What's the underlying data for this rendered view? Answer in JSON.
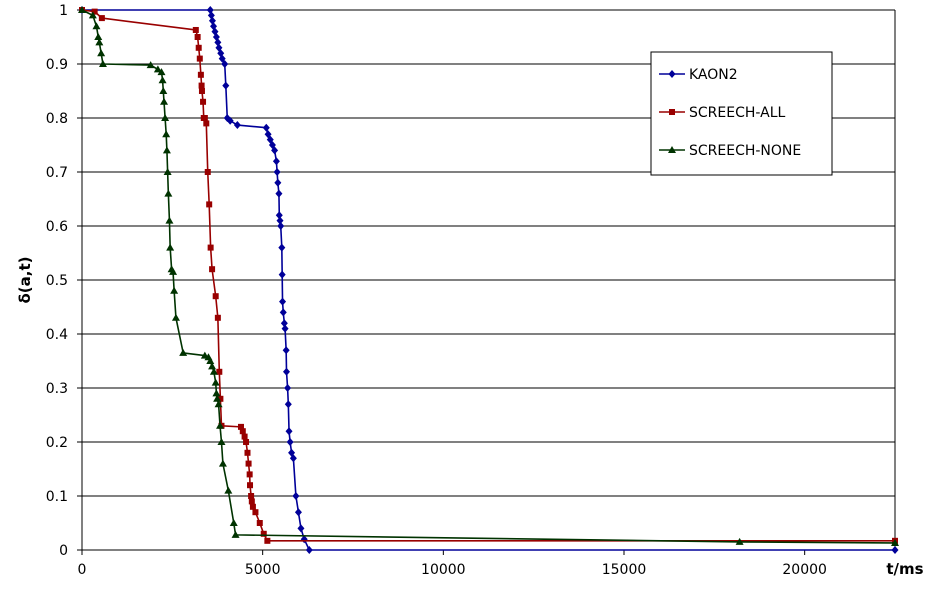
{
  "chart_data": {
    "type": "line",
    "title": "",
    "xlabel": "t/ms",
    "ylabel": "δ(a,t)",
    "xlim": [
      0,
      22500
    ],
    "ylim": [
      0,
      1
    ],
    "xticks": [
      0,
      5000,
      10000,
      15000,
      20000
    ],
    "yticks": [
      0,
      0.1,
      0.2,
      0.3,
      0.4,
      0.5,
      0.6,
      0.7,
      0.8,
      0.9,
      1
    ],
    "xtick_labels": [
      "0",
      "5000",
      "10000",
      "15000",
      "20000"
    ],
    "ytick_labels": [
      "0",
      "0.1",
      "0.2",
      "0.3",
      "0.4",
      "0.5",
      "0.6",
      "0.7",
      "0.8",
      "0.9",
      "1"
    ],
    "grid": {
      "horizontal": true,
      "vertical": false
    },
    "legend_position": "top-right",
    "series": [
      {
        "name": "KAON2",
        "color": "#000099",
        "marker": "diamond",
        "points": [
          [
            0,
            1
          ],
          [
            3550,
            1
          ],
          [
            3580,
            0.99
          ],
          [
            3610,
            0.98
          ],
          [
            3640,
            0.97
          ],
          [
            3680,
            0.96
          ],
          [
            3720,
            0.95
          ],
          [
            3760,
            0.94
          ],
          [
            3790,
            0.93
          ],
          [
            3840,
            0.92
          ],
          [
            3880,
            0.91
          ],
          [
            3950,
            0.9
          ],
          [
            3980,
            0.86
          ],
          [
            4020,
            0.8
          ],
          [
            4100,
            0.795
          ],
          [
            4300,
            0.787
          ],
          [
            5100,
            0.782
          ],
          [
            5150,
            0.77
          ],
          [
            5210,
            0.76
          ],
          [
            5270,
            0.75
          ],
          [
            5330,
            0.74
          ],
          [
            5380,
            0.72
          ],
          [
            5400,
            0.7
          ],
          [
            5420,
            0.68
          ],
          [
            5450,
            0.66
          ],
          [
            5460,
            0.62
          ],
          [
            5480,
            0.61
          ],
          [
            5500,
            0.6
          ],
          [
            5530,
            0.56
          ],
          [
            5540,
            0.51
          ],
          [
            5550,
            0.46
          ],
          [
            5570,
            0.44
          ],
          [
            5600,
            0.42
          ],
          [
            5620,
            0.41
          ],
          [
            5650,
            0.37
          ],
          [
            5660,
            0.33
          ],
          [
            5690,
            0.3
          ],
          [
            5710,
            0.27
          ],
          [
            5730,
            0.22
          ],
          [
            5760,
            0.2
          ],
          [
            5800,
            0.18
          ],
          [
            5850,
            0.17
          ],
          [
            5920,
            0.1
          ],
          [
            5990,
            0.07
          ],
          [
            6060,
            0.04
          ],
          [
            6150,
            0.02
          ],
          [
            6290,
            0
          ],
          [
            22500,
            0
          ]
        ]
      },
      {
        "name": "SCREECH-ALL",
        "color": "#990000",
        "marker": "square",
        "points": [
          [
            0,
            1
          ],
          [
            350,
            0.997
          ],
          [
            550,
            0.985
          ],
          [
            3150,
            0.963
          ],
          [
            3200,
            0.95
          ],
          [
            3230,
            0.93
          ],
          [
            3260,
            0.91
          ],
          [
            3290,
            0.88
          ],
          [
            3310,
            0.86
          ],
          [
            3320,
            0.85
          ],
          [
            3350,
            0.83
          ],
          [
            3370,
            0.8
          ],
          [
            3400,
            0.8
          ],
          [
            3440,
            0.79
          ],
          [
            3480,
            0.7
          ],
          [
            3520,
            0.64
          ],
          [
            3560,
            0.56
          ],
          [
            3600,
            0.52
          ],
          [
            3700,
            0.47
          ],
          [
            3760,
            0.43
          ],
          [
            3800,
            0.33
          ],
          [
            3830,
            0.28
          ],
          [
            3860,
            0.23
          ],
          [
            4400,
            0.228
          ],
          [
            4450,
            0.22
          ],
          [
            4500,
            0.21
          ],
          [
            4540,
            0.2
          ],
          [
            4580,
            0.18
          ],
          [
            4610,
            0.16
          ],
          [
            4640,
            0.14
          ],
          [
            4650,
            0.12
          ],
          [
            4680,
            0.1
          ],
          [
            4700,
            0.09
          ],
          [
            4730,
            0.08
          ],
          [
            4800,
            0.07
          ],
          [
            4920,
            0.05
          ],
          [
            5030,
            0.03
          ],
          [
            5130,
            0.017
          ],
          [
            22500,
            0.017
          ]
        ]
      },
      {
        "name": "SCREECH-NONE",
        "color": "#003300",
        "marker": "triangle",
        "points": [
          [
            0,
            1
          ],
          [
            300,
            0.99
          ],
          [
            400,
            0.97
          ],
          [
            450,
            0.95
          ],
          [
            480,
            0.94
          ],
          [
            530,
            0.92
          ],
          [
            580,
            0.9
          ],
          [
            1900,
            0.898
          ],
          [
            2100,
            0.89
          ],
          [
            2200,
            0.885
          ],
          [
            2230,
            0.87
          ],
          [
            2250,
            0.85
          ],
          [
            2270,
            0.83
          ],
          [
            2300,
            0.8
          ],
          [
            2330,
            0.77
          ],
          [
            2350,
            0.74
          ],
          [
            2370,
            0.7
          ],
          [
            2390,
            0.66
          ],
          [
            2420,
            0.61
          ],
          [
            2440,
            0.56
          ],
          [
            2480,
            0.52
          ],
          [
            2520,
            0.515
          ],
          [
            2550,
            0.48
          ],
          [
            2600,
            0.43
          ],
          [
            2800,
            0.365
          ],
          [
            3400,
            0.36
          ],
          [
            3500,
            0.357
          ],
          [
            3550,
            0.35
          ],
          [
            3600,
            0.34
          ],
          [
            3650,
            0.33
          ],
          [
            3700,
            0.31
          ],
          [
            3720,
            0.29
          ],
          [
            3740,
            0.28
          ],
          [
            3780,
            0.27
          ],
          [
            3820,
            0.23
          ],
          [
            3860,
            0.2
          ],
          [
            3900,
            0.16
          ],
          [
            4050,
            0.11
          ],
          [
            4200,
            0.05
          ],
          [
            4250,
            0.028
          ],
          [
            18200,
            0.015
          ],
          [
            22500,
            0.013
          ]
        ]
      }
    ]
  }
}
